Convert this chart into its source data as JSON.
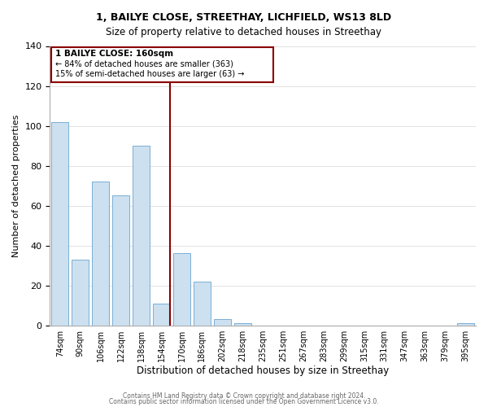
{
  "title": "1, BAILYE CLOSE, STREETHAY, LICHFIELD, WS13 8LD",
  "subtitle": "Size of property relative to detached houses in Streethay",
  "xlabel": "Distribution of detached houses by size in Streethay",
  "ylabel": "Number of detached properties",
  "bar_labels": [
    "74sqm",
    "90sqm",
    "106sqm",
    "122sqm",
    "138sqm",
    "154sqm",
    "170sqm",
    "186sqm",
    "202sqm",
    "218sqm",
    "235sqm",
    "251sqm",
    "267sqm",
    "283sqm",
    "299sqm",
    "315sqm",
    "331sqm",
    "347sqm",
    "363sqm",
    "379sqm",
    "395sqm"
  ],
  "bar_values": [
    102,
    33,
    72,
    65,
    90,
    11,
    36,
    22,
    3,
    1,
    0,
    0,
    0,
    0,
    0,
    0,
    0,
    0,
    0,
    0,
    1
  ],
  "bar_color": "#cce0f0",
  "bar_edge_color": "#7aafd4",
  "highlight_bar_index": 5,
  "red_line_index": 5,
  "highlight_color": "#8b0000",
  "ylim": [
    0,
    140
  ],
  "yticks": [
    0,
    20,
    40,
    60,
    80,
    100,
    120,
    140
  ],
  "annotation_line1": "1 BAILYE CLOSE: 160sqm",
  "annotation_line2": "← 84% of detached houses are smaller (363)",
  "annotation_line3": "15% of semi-detached houses are larger (63) →",
  "footer1": "Contains HM Land Registry data © Crown copyright and database right 2024.",
  "footer2": "Contains public sector information licensed under the Open Government Licence v3.0."
}
